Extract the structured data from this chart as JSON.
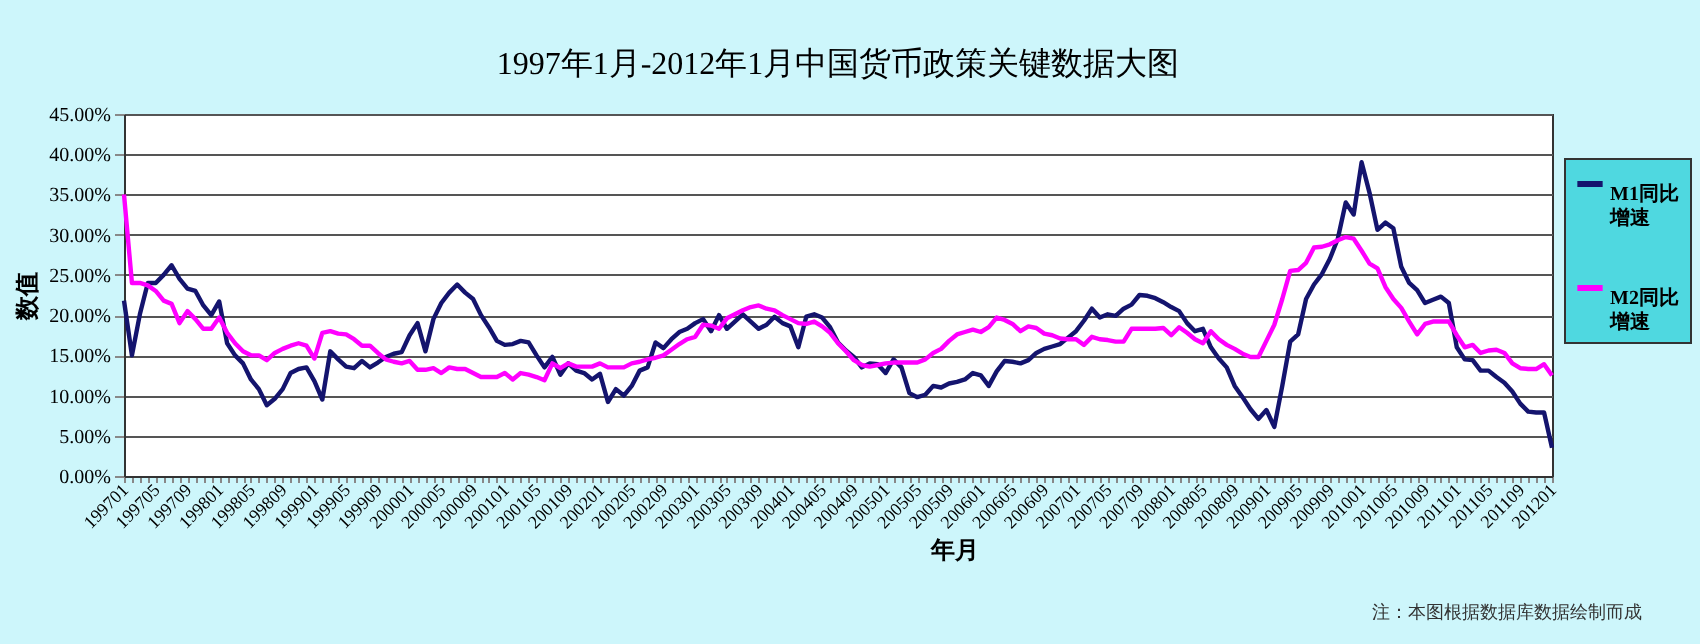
{
  "chart_data": {
    "type": "line",
    "title": "1997年1月-2012年1月中国货币政策关键数据大图",
    "xlabel": "年月",
    "ylabel": "数值",
    "annotations": [
      "注：本图根据数据库数据绘制而成"
    ],
    "categories": [
      "199701",
      null,
      null,
      null,
      "199705",
      null,
      null,
      null,
      "199709",
      null,
      null,
      null,
      "199801",
      null,
      null,
      null,
      "199805",
      null,
      null,
      null,
      "199809",
      null,
      null,
      null,
      "199901",
      null,
      null,
      null,
      "199905",
      null,
      null,
      null,
      "199909",
      null,
      null,
      null,
      "200001",
      null,
      null,
      null,
      "200005",
      null,
      null,
      null,
      "200009",
      null,
      null,
      null,
      "200101",
      null,
      null,
      null,
      "200105",
      null,
      null,
      null,
      "200109",
      null,
      null,
      null,
      "200201",
      null,
      null,
      null,
      "200205",
      null,
      null,
      null,
      "200209",
      null,
      null,
      null,
      "200301",
      null,
      null,
      null,
      "200305",
      null,
      null,
      null,
      "200309",
      null,
      null,
      null,
      "200401",
      null,
      null,
      null,
      "200405",
      null,
      null,
      null,
      "200409",
      null,
      null,
      null,
      "200501",
      null,
      null,
      null,
      "200505",
      null,
      null,
      null,
      "200509",
      null,
      null,
      null,
      "200601",
      null,
      null,
      null,
      "200605",
      null,
      null,
      null,
      "200609",
      null,
      null,
      null,
      "200701",
      null,
      null,
      null,
      "200705",
      null,
      null,
      null,
      "200709",
      null,
      null,
      null,
      "200801",
      null,
      null,
      null,
      "200805",
      null,
      null,
      null,
      "200809",
      null,
      null,
      null,
      "200901",
      null,
      null,
      null,
      "200905",
      null,
      null,
      null,
      "200909",
      null,
      null,
      null,
      "201001",
      null,
      null,
      null,
      "201005",
      null,
      null,
      null,
      "201009",
      null,
      null,
      null,
      "201101",
      null,
      null,
      null,
      "201105",
      null,
      null,
      null,
      "201109",
      null,
      null,
      null,
      "201201"
    ],
    "series": [
      {
        "name": "M1同比增速",
        "color": "#14146e",
        "values": [
          21.8,
          15.0,
          20.1,
          24.0,
          24.0,
          25.0,
          26.2,
          24.5,
          23.3,
          23.0,
          21.2,
          20.0,
          21.7,
          16.5,
          15.0,
          14.0,
          12.0,
          10.8,
          8.8,
          9.6,
          10.8,
          12.8,
          13.3,
          13.5,
          11.8,
          9.5,
          15.5,
          14.5,
          13.6,
          13.4,
          14.3,
          13.5,
          14.1,
          14.8,
          15.2,
          15.4,
          17.5,
          19.0,
          15.5,
          19.5,
          21.5,
          22.8,
          23.8,
          22.8,
          22.0,
          20.0,
          18.5,
          16.8,
          16.3,
          16.4,
          16.8,
          16.6,
          15.0,
          13.5,
          14.8,
          12.6,
          14.0,
          13.1,
          12.8,
          12.0,
          12.7,
          9.2,
          10.8,
          10.0,
          11.2,
          13.1,
          13.5,
          16.6,
          15.9,
          17.0,
          17.9,
          18.3,
          19.0,
          19.5,
          18.0,
          20.0,
          18.3,
          19.2,
          20.1,
          19.2,
          18.3,
          18.8,
          19.8,
          19.0,
          18.6,
          16.0,
          19.8,
          20.1,
          19.7,
          18.5,
          16.6,
          15.6,
          14.8,
          13.5,
          14.0,
          13.9,
          12.8,
          14.5,
          13.5,
          10.3,
          9.8,
          10.1,
          11.2,
          11.0,
          11.5,
          11.7,
          12.0,
          12.8,
          12.5,
          11.2,
          13.0,
          14.3,
          14.2,
          14.0,
          14.4,
          15.3,
          15.8,
          16.1,
          16.4,
          17.2,
          18.0,
          19.3,
          20.8,
          19.7,
          20.1,
          19.9,
          20.8,
          21.3,
          22.5,
          22.4,
          22.1,
          21.6,
          21.0,
          20.5,
          19.0,
          18.0,
          18.3,
          16.0,
          14.6,
          13.5,
          11.2,
          9.8,
          8.3,
          7.1,
          8.2,
          6.1,
          11.2,
          16.7,
          17.6,
          22.0,
          23.8,
          25.1,
          27.0,
          29.5,
          34.0,
          32.5,
          39.0,
          35.2,
          30.6,
          31.5,
          30.8,
          26.0,
          24.0,
          23.1,
          21.5,
          21.9,
          22.3,
          21.5,
          16.0,
          14.5,
          14.4,
          13.1,
          13.1,
          12.3,
          11.6,
          10.5,
          9.0,
          8.0,
          7.9,
          7.9,
          3.5
        ]
      },
      {
        "name": "M2同比增速",
        "color": "#ff00ff",
        "values": [
          35.0,
          24.0,
          24.0,
          23.7,
          23.0,
          21.8,
          21.4,
          19.0,
          20.5,
          19.5,
          18.3,
          18.3,
          19.7,
          17.8,
          16.5,
          15.5,
          15.0,
          15.0,
          14.4,
          15.3,
          15.8,
          16.2,
          16.5,
          16.2,
          14.6,
          17.8,
          18.0,
          17.7,
          17.6,
          17.0,
          16.2,
          16.2,
          15.3,
          14.5,
          14.2,
          14.0,
          14.3,
          13.2,
          13.2,
          13.4,
          12.8,
          13.5,
          13.3,
          13.3,
          12.8,
          12.3,
          12.3,
          12.3,
          12.8,
          12.0,
          12.8,
          12.6,
          12.3,
          11.9,
          14.0,
          13.4,
          14.0,
          13.6,
          13.6,
          13.6,
          14.0,
          13.5,
          13.5,
          13.5,
          14.0,
          14.2,
          14.5,
          14.7,
          15.0,
          15.7,
          16.4,
          17.0,
          17.3,
          18.8,
          18.7,
          18.3,
          19.6,
          20.1,
          20.6,
          21.0,
          21.2,
          20.8,
          20.6,
          20.0,
          19.5,
          19.0,
          18.9,
          19.2,
          18.6,
          17.8,
          16.5,
          15.5,
          14.4,
          13.8,
          13.6,
          13.8,
          14.0,
          14.1,
          14.1,
          14.1,
          14.1,
          14.5,
          15.3,
          15.8,
          16.8,
          17.6,
          17.9,
          18.2,
          17.9,
          18.5,
          19.7,
          19.4,
          18.9,
          18.0,
          18.6,
          18.4,
          17.7,
          17.5,
          17.1,
          17.0,
          17.0,
          16.3,
          17.3,
          17.0,
          16.9,
          16.7,
          16.7,
          18.3,
          18.3,
          18.3,
          18.3,
          18.4,
          17.5,
          18.5,
          17.8,
          17.0,
          16.5,
          18.0,
          17.0,
          16.3,
          15.8,
          15.2,
          14.8,
          14.8,
          16.8,
          18.8,
          22.0,
          25.5,
          25.6,
          26.5,
          28.4,
          28.5,
          28.8,
          29.3,
          29.7,
          29.5,
          28.0,
          26.4,
          25.8,
          23.5,
          22.0,
          20.9,
          19.2,
          17.6,
          18.9,
          19.2,
          19.2,
          19.2,
          17.5,
          16.0,
          16.3,
          15.3,
          15.6,
          15.7,
          15.3,
          14.0,
          13.4,
          13.3,
          13.3,
          13.9,
          12.5
        ]
      }
    ],
    "ylim": [
      0,
      45
    ],
    "yticks": [
      {
        "value": 0,
        "label": "0.00%"
      },
      {
        "value": 5,
        "label": "5.00%"
      },
      {
        "value": 10,
        "label": "10.00%"
      },
      {
        "value": 15,
        "label": "15.00%"
      },
      {
        "value": 20,
        "label": "20.00%"
      },
      {
        "value": 25,
        "label": "25.00%"
      },
      {
        "value": 30,
        "label": "30.00%"
      },
      {
        "value": 35,
        "label": "35.00%"
      },
      {
        "value": 40,
        "label": "40.00%"
      },
      {
        "value": 45,
        "label": "45.00%"
      }
    ],
    "grid": "y",
    "legend": "right",
    "marker": "none",
    "line_style": "solid"
  }
}
